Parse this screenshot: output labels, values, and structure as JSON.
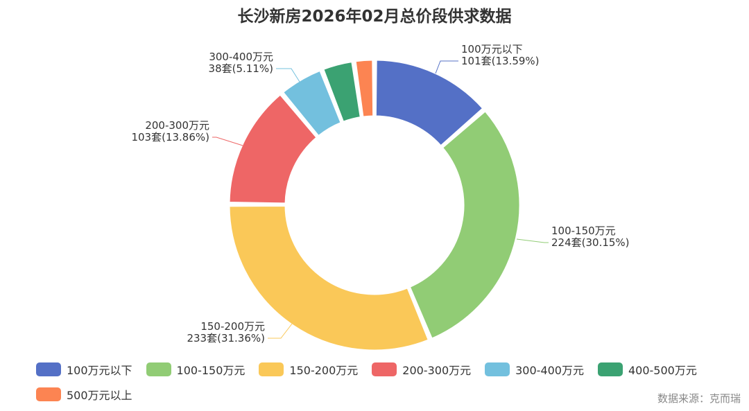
{
  "chart_data": {
    "type": "pie",
    "subtype": "donut",
    "title": "长沙新房2026年02月总价段供求数据",
    "unit": "套",
    "categories": [
      "100万元以下",
      "100-150万元",
      "150-200万元",
      "200-300万元",
      "300-400万元",
      "400-500万元",
      "500万元以上"
    ],
    "values": [
      101,
      224,
      233,
      103,
      38,
      27,
      17
    ],
    "percent_labels": [
      "13.59%",
      "30.15%",
      "31.36%",
      "13.86%",
      "5.11%",
      "",
      ""
    ],
    "slice_labels": [
      [
        "100万元以下",
        "101套(13.59%)"
      ],
      [
        "100-150万元",
        "224套(30.15%)"
      ],
      [
        "150-200万元",
        "233套(31.36%)"
      ],
      [
        "200-300万元",
        "103套(13.86%)"
      ],
      [
        "300-400万元",
        "38套(5.11%)"
      ],
      null,
      null
    ],
    "colors": [
      "#5470c6",
      "#91cc75",
      "#fac858",
      "#ee6666",
      "#73c0de",
      "#3ba272",
      "#fc8452"
    ],
    "legend_position": "bottom"
  },
  "source": "数据来源：克而瑞"
}
